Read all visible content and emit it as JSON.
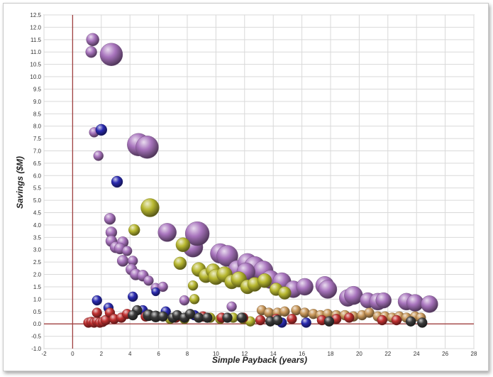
{
  "chart_data": {
    "type": "bubble",
    "xlabel": "Simple Payback (years)",
    "ylabel": "Savings ($M)",
    "xlim": [
      -2,
      28
    ],
    "ylim": [
      -1.0,
      12.5
    ],
    "x_ticks": [
      "-2",
      "0",
      "2",
      "4",
      "6",
      "8",
      "10",
      "12",
      "14",
      "16",
      "18",
      "20",
      "22",
      "24",
      "26",
      "28"
    ],
    "y_ticks": [
      "-1.0",
      "-0.5",
      "0.0",
      "0.5",
      "1.0",
      "1.5",
      "2.0",
      "2.5",
      "3.0",
      "3.5",
      "4.0",
      "4.5",
      "5.0",
      "5.5",
      "6.0",
      "6.5",
      "7.0",
      "7.5",
      "8.0",
      "8.5",
      "9.0",
      "9.5",
      "10.0",
      "10.5",
      "11.0",
      "11.5",
      "12.0",
      "12.5"
    ],
    "grid": true,
    "reference_lines": {
      "x": 0,
      "y": 0,
      "color": "#a04040"
    },
    "series": [
      {
        "color": "#a874bd",
        "points": [
          {
            "x": 1.4,
            "y": 11.5,
            "size": 9
          },
          {
            "x": 1.3,
            "y": 11.0,
            "size": 8
          },
          {
            "x": 2.7,
            "y": 10.9,
            "size": 16
          },
          {
            "x": 1.5,
            "y": 7.75,
            "size": 7
          },
          {
            "x": 1.8,
            "y": 6.8,
            "size": 7
          },
          {
            "x": 4.6,
            "y": 7.25,
            "size": 16
          },
          {
            "x": 5.2,
            "y": 7.15,
            "size": 16
          },
          {
            "x": 2.6,
            "y": 4.25,
            "size": 8
          },
          {
            "x": 2.7,
            "y": 3.7,
            "size": 8
          },
          {
            "x": 2.7,
            "y": 3.35,
            "size": 8
          },
          {
            "x": 3.0,
            "y": 3.1,
            "size": 8
          },
          {
            "x": 3.5,
            "y": 3.3,
            "size": 8
          },
          {
            "x": 3.3,
            "y": 3.05,
            "size": 8
          },
          {
            "x": 3.8,
            "y": 2.95,
            "size": 7
          },
          {
            "x": 3.5,
            "y": 2.55,
            "size": 8
          },
          {
            "x": 4.2,
            "y": 2.55,
            "size": 7
          },
          {
            "x": 4.1,
            "y": 2.2,
            "size": 8
          },
          {
            "x": 4.4,
            "y": 2.0,
            "size": 8
          },
          {
            "x": 4.9,
            "y": 1.95,
            "size": 8
          },
          {
            "x": 5.3,
            "y": 1.75,
            "size": 7
          },
          {
            "x": 5.8,
            "y": 1.45,
            "size": 7
          },
          {
            "x": 6.3,
            "y": 1.5,
            "size": 7
          },
          {
            "x": 6.6,
            "y": 3.7,
            "size": 13
          },
          {
            "x": 8.4,
            "y": 3.1,
            "size": 14
          },
          {
            "x": 8.7,
            "y": 3.65,
            "size": 17
          },
          {
            "x": 7.8,
            "y": 0.95,
            "size": 7
          },
          {
            "x": 11.1,
            "y": 0.7,
            "size": 7
          },
          {
            "x": 10.3,
            "y": 2.85,
            "size": 14
          },
          {
            "x": 10.8,
            "y": 2.75,
            "size": 15
          },
          {
            "x": 11.5,
            "y": 2.2,
            "size": 13
          },
          {
            "x": 12.2,
            "y": 2.45,
            "size": 14
          },
          {
            "x": 12.7,
            "y": 2.3,
            "size": 15
          },
          {
            "x": 13.3,
            "y": 2.15,
            "size": 14
          },
          {
            "x": 12.1,
            "y": 2.1,
            "size": 13
          },
          {
            "x": 13.8,
            "y": 1.8,
            "size": 13
          },
          {
            "x": 14.6,
            "y": 1.7,
            "size": 13
          },
          {
            "x": 15.4,
            "y": 1.4,
            "size": 12
          },
          {
            "x": 16.2,
            "y": 1.5,
            "size": 12
          },
          {
            "x": 17.6,
            "y": 1.55,
            "size": 13
          },
          {
            "x": 17.8,
            "y": 1.4,
            "size": 13
          },
          {
            "x": 19.2,
            "y": 1.05,
            "size": 12
          },
          {
            "x": 19.6,
            "y": 1.15,
            "size": 13
          },
          {
            "x": 20.6,
            "y": 0.95,
            "size": 11
          },
          {
            "x": 21.3,
            "y": 0.9,
            "size": 12
          },
          {
            "x": 21.7,
            "y": 0.95,
            "size": 11
          },
          {
            "x": 23.3,
            "y": 0.9,
            "size": 12
          },
          {
            "x": 23.9,
            "y": 0.85,
            "size": 12
          },
          {
            "x": 24.9,
            "y": 0.8,
            "size": 12
          }
        ]
      },
      {
        "color": "#b8b830",
        "points": [
          {
            "x": 5.4,
            "y": 4.7,
            "size": 13
          },
          {
            "x": 4.3,
            "y": 3.8,
            "size": 8
          },
          {
            "x": 7.7,
            "y": 3.2,
            "size": 10
          },
          {
            "x": 7.5,
            "y": 2.45,
            "size": 9
          },
          {
            "x": 8.8,
            "y": 2.2,
            "size": 10
          },
          {
            "x": 9.3,
            "y": 1.95,
            "size": 10
          },
          {
            "x": 9.8,
            "y": 2.15,
            "size": 10
          },
          {
            "x": 10.0,
            "y": 1.9,
            "size": 11
          },
          {
            "x": 10.6,
            "y": 2.0,
            "size": 11
          },
          {
            "x": 11.1,
            "y": 1.7,
            "size": 10
          },
          {
            "x": 11.6,
            "y": 1.8,
            "size": 11
          },
          {
            "x": 12.2,
            "y": 1.5,
            "size": 10
          },
          {
            "x": 12.7,
            "y": 1.6,
            "size": 10
          },
          {
            "x": 13.4,
            "y": 1.75,
            "size": 10
          },
          {
            "x": 14.2,
            "y": 1.4,
            "size": 9
          },
          {
            "x": 14.8,
            "y": 1.25,
            "size": 9
          },
          {
            "x": 8.4,
            "y": 1.55,
            "size": 7
          },
          {
            "x": 8.5,
            "y": 1.0,
            "size": 7
          },
          {
            "x": 6.8,
            "y": 0.2,
            "size": 7
          },
          {
            "x": 7.8,
            "y": 0.2,
            "size": 7
          },
          {
            "x": 9.6,
            "y": 0.25,
            "size": 7
          },
          {
            "x": 10.3,
            "y": 0.2,
            "size": 7
          },
          {
            "x": 11.2,
            "y": 0.25,
            "size": 7
          },
          {
            "x": 11.9,
            "y": 0.2,
            "size": 7
          },
          {
            "x": 12.4,
            "y": 0.1,
            "size": 7
          }
        ]
      },
      {
        "color": "#c8975a",
        "points": [
          {
            "x": 13.2,
            "y": 0.55,
            "size": 7
          },
          {
            "x": 13.7,
            "y": 0.45,
            "size": 7
          },
          {
            "x": 14.3,
            "y": 0.45,
            "size": 7
          },
          {
            "x": 14.8,
            "y": 0.5,
            "size": 7
          },
          {
            "x": 15.6,
            "y": 0.55,
            "size": 7
          },
          {
            "x": 16.2,
            "y": 0.45,
            "size": 7
          },
          {
            "x": 16.8,
            "y": 0.4,
            "size": 7
          },
          {
            "x": 17.3,
            "y": 0.35,
            "size": 7
          },
          {
            "x": 17.8,
            "y": 0.4,
            "size": 7
          },
          {
            "x": 18.4,
            "y": 0.35,
            "size": 7
          },
          {
            "x": 19.0,
            "y": 0.35,
            "size": 7
          },
          {
            "x": 19.6,
            "y": 0.3,
            "size": 7
          },
          {
            "x": 20.2,
            "y": 0.35,
            "size": 7
          },
          {
            "x": 20.7,
            "y": 0.45,
            "size": 7
          },
          {
            "x": 21.3,
            "y": 0.3,
            "size": 7
          },
          {
            "x": 21.8,
            "y": 0.3,
            "size": 7
          },
          {
            "x": 22.3,
            "y": 0.25,
            "size": 7
          },
          {
            "x": 22.8,
            "y": 0.3,
            "size": 7
          },
          {
            "x": 23.3,
            "y": 0.25,
            "size": 7
          },
          {
            "x": 23.9,
            "y": 0.3,
            "size": 7
          },
          {
            "x": 24.3,
            "y": 0.25,
            "size": 7
          }
        ]
      },
      {
        "color": "#2a2ab0",
        "points": [
          {
            "x": 2.0,
            "y": 7.85,
            "size": 8
          },
          {
            "x": 3.1,
            "y": 5.75,
            "size": 8
          },
          {
            "x": 1.7,
            "y": 0.95,
            "size": 7
          },
          {
            "x": 2.5,
            "y": 0.65,
            "size": 7
          },
          {
            "x": 4.2,
            "y": 1.1,
            "size": 7
          },
          {
            "x": 5.8,
            "y": 1.3,
            "size": 6
          },
          {
            "x": 4.9,
            "y": 0.55,
            "size": 7
          },
          {
            "x": 6.5,
            "y": 0.5,
            "size": 7
          },
          {
            "x": 8.5,
            "y": 0.35,
            "size": 7
          },
          {
            "x": 14.6,
            "y": 0.05,
            "size": 7
          },
          {
            "x": 16.3,
            "y": 0.05,
            "size": 7
          }
        ]
      },
      {
        "color": "#c03030",
        "points": [
          {
            "x": 1.1,
            "y": 0.05,
            "size": 7
          },
          {
            "x": 1.3,
            "y": 0.08,
            "size": 7
          },
          {
            "x": 1.5,
            "y": 0.05,
            "size": 7
          },
          {
            "x": 1.7,
            "y": 0.1,
            "size": 7
          },
          {
            "x": 1.9,
            "y": 0.05,
            "size": 7
          },
          {
            "x": 2.1,
            "y": 0.08,
            "size": 7
          },
          {
            "x": 1.7,
            "y": 0.45,
            "size": 7
          },
          {
            "x": 2.3,
            "y": 0.15,
            "size": 7
          },
          {
            "x": 2.6,
            "y": 0.45,
            "size": 7
          },
          {
            "x": 2.9,
            "y": 0.2,
            "size": 7
          },
          {
            "x": 3.4,
            "y": 0.25,
            "size": 7
          },
          {
            "x": 3.8,
            "y": 0.4,
            "size": 7
          },
          {
            "x": 5.1,
            "y": 0.3,
            "size": 7
          },
          {
            "x": 7.2,
            "y": 0.25,
            "size": 7
          },
          {
            "x": 9.1,
            "y": 0.3,
            "size": 7
          },
          {
            "x": 10.4,
            "y": 0.25,
            "size": 7
          },
          {
            "x": 11.9,
            "y": 0.25,
            "size": 7
          },
          {
            "x": 13.1,
            "y": 0.15,
            "size": 7
          },
          {
            "x": 14.2,
            "y": 0.2,
            "size": 7
          },
          {
            "x": 15.3,
            "y": 0.2,
            "size": 7
          },
          {
            "x": 17.4,
            "y": 0.15,
            "size": 7
          },
          {
            "x": 18.4,
            "y": 0.2,
            "size": 7
          },
          {
            "x": 19.3,
            "y": 0.25,
            "size": 7
          },
          {
            "x": 21.6,
            "y": 0.15,
            "size": 7
          },
          {
            "x": 22.6,
            "y": 0.15,
            "size": 7
          }
        ]
      },
      {
        "color": "#3a3a3a",
        "points": [
          {
            "x": 4.5,
            "y": 0.55,
            "size": 7
          },
          {
            "x": 4.2,
            "y": 0.35,
            "size": 7
          },
          {
            "x": 5.3,
            "y": 0.35,
            "size": 8
          },
          {
            "x": 5.8,
            "y": 0.3,
            "size": 8
          },
          {
            "x": 6.3,
            "y": 0.3,
            "size": 7
          },
          {
            "x": 7.0,
            "y": 0.25,
            "size": 7
          },
          {
            "x": 7.3,
            "y": 0.35,
            "size": 7
          },
          {
            "x": 7.8,
            "y": 0.25,
            "size": 7
          },
          {
            "x": 8.2,
            "y": 0.4,
            "size": 7
          },
          {
            "x": 8.8,
            "y": 0.25,
            "size": 7
          },
          {
            "x": 9.4,
            "y": 0.25,
            "size": 7
          },
          {
            "x": 10.8,
            "y": 0.25,
            "size": 7
          },
          {
            "x": 11.8,
            "y": 0.25,
            "size": 7
          },
          {
            "x": 13.8,
            "y": 0.1,
            "size": 7
          },
          {
            "x": 14.3,
            "y": 0.15,
            "size": 7
          },
          {
            "x": 17.9,
            "y": 0.1,
            "size": 7
          },
          {
            "x": 23.6,
            "y": 0.1,
            "size": 7
          },
          {
            "x": 24.4,
            "y": 0.05,
            "size": 7
          }
        ]
      }
    ]
  }
}
